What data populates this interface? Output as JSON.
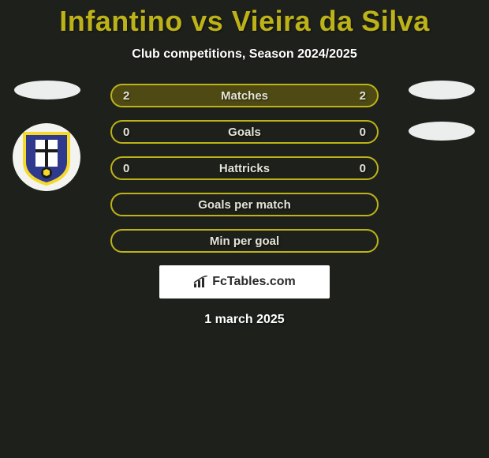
{
  "title": "Infantino vs Vieira da Silva",
  "subtitle": "Club competitions, Season 2024/2025",
  "date": "1 march 2025",
  "watermark": "FcTables.com",
  "colors": {
    "bar_border": "#bdb318",
    "bar_fill": "#4f4a14",
    "bar_empty_fill": "transparent",
    "bar_text": "#e4e4d6",
    "title_color": "#bdb318",
    "background": "#1e201c",
    "ellipse": "#eceeee",
    "badge_bg": "#f3f3f0"
  },
  "bars": [
    {
      "label": "Matches",
      "left": "2",
      "right": "2",
      "filled": true
    },
    {
      "label": "Goals",
      "left": "0",
      "right": "0",
      "filled": false
    },
    {
      "label": "Hattricks",
      "left": "0",
      "right": "0",
      "filled": false
    },
    {
      "label": "Goals per match",
      "left": "",
      "right": "",
      "filled": false
    },
    {
      "label": "Min per goal",
      "left": "",
      "right": "",
      "filled": false
    }
  ],
  "left_ellipses": 1,
  "right_ellipses": 2,
  "badge": {
    "shield_fill": "#2f3a8f",
    "stripe": "#f5da2b",
    "cross": "#1c1c1c"
  }
}
